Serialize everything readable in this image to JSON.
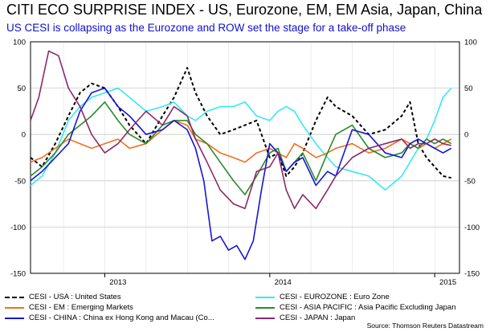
{
  "title": "CITI ECO SURPRISE INDEX - US, Eurozone, EM, EM Asia, Japan, China",
  "subtitle": "US CESI is collapsing as the Eurozone and ROW set the stage for a take-off phase",
  "source": "Source: Thomson Reuters Datastream",
  "colors": {
    "us": "#000000",
    "euro": "#33eaf0",
    "em": "#f07020",
    "asia": "#2a8a2a",
    "china": "#1616d6",
    "japan": "#8a2a68"
  },
  "legend": [
    {
      "key": "us",
      "label": "CESI - USA : United States",
      "dashed": true
    },
    {
      "key": "euro",
      "label": "CESI - EUROZONE : Euro Zone",
      "dashed": false
    },
    {
      "key": "em",
      "label": "CESI - EM : Emerging Markets",
      "dashed": false
    },
    {
      "key": "asia",
      "label": "CESI - ASIA PACIFIC : Asia Pacific Excluding Japan",
      "dashed": false
    },
    {
      "key": "china",
      "label": "CESI - CHINA : China ex Hong Kong and Macau (Co...",
      "dashed": false
    },
    {
      "key": "japan",
      "label": "CESI - JAPAN : Japan",
      "dashed": false
    }
  ],
  "chart_data": {
    "type": "line",
    "x_ticks": [
      "2013",
      "2014",
      "2015"
    ],
    "x_tick_values": [
      2013.0,
      2014.0,
      2015.0
    ],
    "xlim": [
      2012.55,
      2015.15
    ],
    "ylim": [
      -150,
      100
    ],
    "y_ticks": [
      100,
      50,
      0,
      -50,
      -100,
      -150
    ],
    "grid": true,
    "series": [
      {
        "key": "us",
        "name": "CESI - USA : United States",
        "dashed": true,
        "x": [
          2012.55,
          2012.62,
          2012.7,
          2012.78,
          2012.85,
          2012.92,
          2013.0,
          2013.08,
          2013.15,
          2013.25,
          2013.35,
          2013.42,
          2013.5,
          2013.55,
          2013.62,
          2013.7,
          2013.78,
          2013.85,
          2013.92,
          2014.0,
          2014.05,
          2014.1,
          2014.15,
          2014.2,
          2014.28,
          2014.35,
          2014.4,
          2014.5,
          2014.6,
          2014.7,
          2014.8,
          2014.85,
          2014.9,
          2014.95,
          2015.0,
          2015.05,
          2015.1
        ],
        "y": [
          -25,
          -35,
          -10,
          20,
          45,
          55,
          50,
          30,
          10,
          -10,
          20,
          40,
          72,
          45,
          20,
          0,
          5,
          10,
          15,
          -25,
          -20,
          -45,
          -35,
          -20,
          15,
          40,
          30,
          20,
          0,
          5,
          20,
          35,
          -10,
          -25,
          -35,
          -45,
          -47
        ]
      },
      {
        "key": "euro",
        "name": "CESI - EUROZONE : Euro Zone",
        "dashed": false,
        "x": [
          2012.55,
          2012.62,
          2012.7,
          2012.78,
          2012.85,
          2012.92,
          2013.0,
          2013.08,
          2013.15,
          2013.25,
          2013.35,
          2013.42,
          2013.5,
          2013.55,
          2013.62,
          2013.7,
          2013.78,
          2013.85,
          2013.92,
          2014.0,
          2014.05,
          2014.1,
          2014.15,
          2014.2,
          2014.28,
          2014.35,
          2014.4,
          2014.5,
          2014.6,
          2014.7,
          2014.8,
          2014.85,
          2014.9,
          2014.95,
          2015.0,
          2015.05,
          2015.1
        ],
        "y": [
          -55,
          -45,
          -20,
          15,
          30,
          40,
          45,
          50,
          40,
          25,
          30,
          35,
          20,
          15,
          25,
          30,
          30,
          35,
          20,
          15,
          25,
          30,
          25,
          10,
          -10,
          -25,
          -35,
          -40,
          -45,
          -60,
          -45,
          -30,
          -15,
          -5,
          15,
          40,
          50
        ]
      },
      {
        "key": "em",
        "name": "CESI - EM : Emerging Markets",
        "dashed": false,
        "x": [
          2012.55,
          2012.62,
          2012.7,
          2012.78,
          2012.85,
          2012.92,
          2013.0,
          2013.08,
          2013.15,
          2013.25,
          2013.35,
          2013.42,
          2013.5,
          2013.55,
          2013.62,
          2013.7,
          2013.78,
          2013.85,
          2013.92,
          2014.0,
          2014.05,
          2014.1,
          2014.15,
          2014.2,
          2014.28,
          2014.35,
          2014.4,
          2014.5,
          2014.6,
          2014.7,
          2014.8,
          2014.85,
          2014.9,
          2014.95,
          2015.0,
          2015.05,
          2015.1
        ],
        "y": [
          -30,
          -25,
          -15,
          -5,
          -10,
          -15,
          -10,
          -5,
          -15,
          -10,
          5,
          15,
          10,
          -5,
          -10,
          -20,
          -25,
          -30,
          -20,
          -15,
          -20,
          -25,
          -10,
          -15,
          -25,
          -20,
          -15,
          -10,
          -20,
          -15,
          -5,
          -10,
          -15,
          -10,
          -15,
          -10,
          -5
        ]
      },
      {
        "key": "asia",
        "name": "CESI - ASIA PACIFIC : Asia Pacific Excluding Japan",
        "dashed": false,
        "x": [
          2012.55,
          2012.62,
          2012.7,
          2012.78,
          2012.85,
          2012.92,
          2013.0,
          2013.08,
          2013.15,
          2013.25,
          2013.35,
          2013.42,
          2013.5,
          2013.55,
          2013.62,
          2013.7,
          2013.78,
          2013.85,
          2013.92,
          2014.0,
          2014.05,
          2014.1,
          2014.15,
          2014.2,
          2014.28,
          2014.35,
          2014.4,
          2014.5,
          2014.6,
          2014.7,
          2014.8,
          2014.85,
          2014.9,
          2014.95,
          2015.0,
          2015.05,
          2015.1
        ],
        "y": [
          -45,
          -35,
          -20,
          0,
          10,
          20,
          35,
          15,
          0,
          -10,
          10,
          15,
          15,
          0,
          -10,
          -30,
          -50,
          -65,
          -45,
          -20,
          -15,
          -40,
          -30,
          -20,
          -50,
          -20,
          0,
          10,
          -15,
          -25,
          -20,
          -10,
          -15,
          -5,
          -10,
          -5,
          -10
        ]
      },
      {
        "key": "china",
        "name": "CESI - CHINA : China ex Hong Kong and Macau (Co...",
        "dashed": false,
        "x": [
          2012.55,
          2012.62,
          2012.7,
          2012.78,
          2012.85,
          2012.92,
          2013.0,
          2013.08,
          2013.15,
          2013.25,
          2013.35,
          2013.42,
          2013.5,
          2013.55,
          2013.6,
          2013.65,
          2013.7,
          2013.75,
          2013.8,
          2013.85,
          2013.9,
          2013.95,
          2014.0,
          2014.05,
          2014.1,
          2014.15,
          2014.2,
          2014.28,
          2014.35,
          2014.4,
          2014.5,
          2014.6,
          2014.7,
          2014.8,
          2014.85,
          2014.9,
          2014.95,
          2015.0,
          2015.05,
          2015.1
        ],
        "y": [
          -50,
          -40,
          -25,
          -10,
          25,
          45,
          50,
          30,
          20,
          0,
          5,
          15,
          5,
          -15,
          -50,
          -115,
          -110,
          -125,
          -120,
          -135,
          -115,
          -60,
          -10,
          -20,
          -40,
          -30,
          -25,
          -55,
          -40,
          -45,
          5,
          0,
          -20,
          -25,
          -10,
          -5,
          -10,
          -15,
          -20,
          -15
        ]
      },
      {
        "key": "japan",
        "name": "CESI - JAPAN : Japan",
        "dashed": false,
        "x": [
          2012.55,
          2012.6,
          2012.66,
          2012.72,
          2012.78,
          2012.85,
          2012.92,
          2013.0,
          2013.08,
          2013.15,
          2013.25,
          2013.35,
          2013.42,
          2013.5,
          2013.55,
          2013.62,
          2013.7,
          2013.78,
          2013.85,
          2013.92,
          2014.0,
          2014.05,
          2014.1,
          2014.15,
          2014.2,
          2014.28,
          2014.35,
          2014.4,
          2014.5,
          2014.6,
          2014.7,
          2014.8,
          2014.85,
          2014.9,
          2014.95,
          2015.0,
          2015.05,
          2015.1
        ],
        "y": [
          15,
          40,
          90,
          85,
          50,
          30,
          0,
          -20,
          -10,
          5,
          25,
          10,
          30,
          20,
          -5,
          -30,
          -60,
          -75,
          -80,
          -40,
          -35,
          -20,
          -60,
          -80,
          -65,
          -80,
          -60,
          -45,
          -25,
          -15,
          -10,
          -5,
          -15,
          -10,
          -10,
          -5,
          -10,
          -12
        ]
      }
    ]
  }
}
